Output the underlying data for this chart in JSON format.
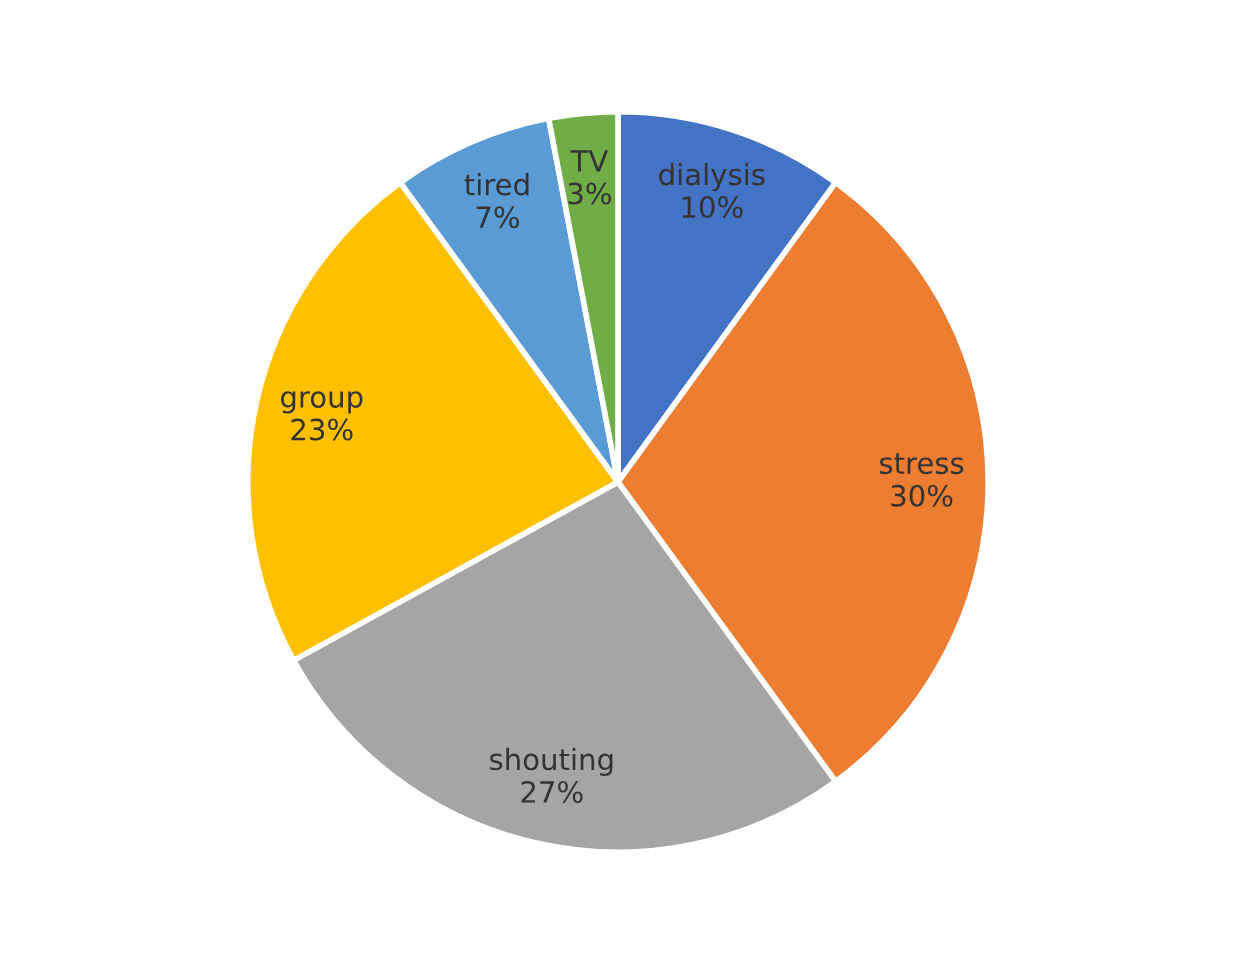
{
  "chart_data": {
    "type": "pie",
    "categories": [
      "dialysis",
      "stress",
      "shouting",
      "group",
      "tired",
      "TV"
    ],
    "values": [
      10,
      30,
      27,
      23,
      7,
      3
    ],
    "colors": [
      "#4472c4",
      "#ed7d31",
      "#a5a5a5",
      "#ffc000",
      "#5b9bd5",
      "#70ad47"
    ],
    "value_labels": [
      "10%",
      "30%",
      "27%",
      "23%",
      "7%",
      "3%"
    ],
    "legend": false
  }
}
